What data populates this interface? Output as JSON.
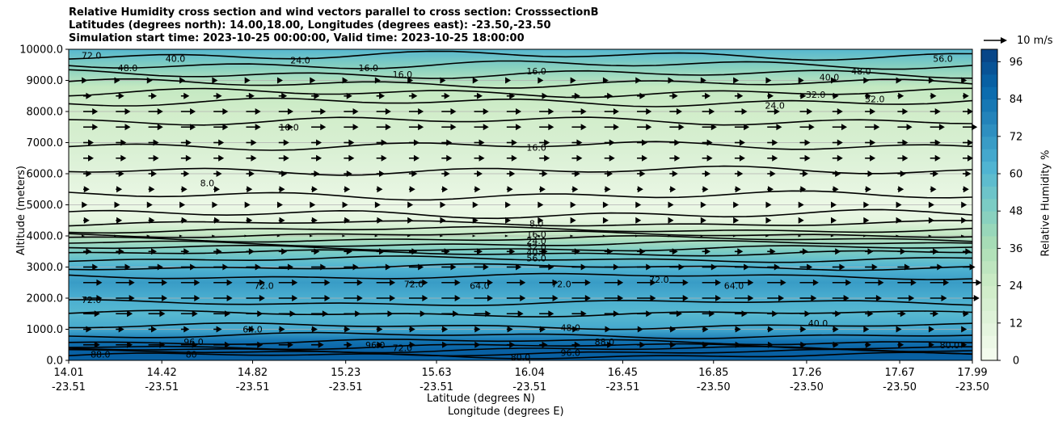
{
  "title_lines": [
    "Relative Humidity cross section and wind vectors parallel to cross section: CrosssectionB",
    "Latitudes (degrees north): 14.00,18.00, Longitudes (degrees east): -23.50,-23.50",
    "Simulation start time: 2023-10-25 00:00:00, Valid time: 2023-10-25 18:00:00"
  ],
  "chart_data": {
    "type": "heatmap",
    "subtype": "filled contour cross-section with line contours and wind vectors",
    "xlabel": "Latitude (degrees N)",
    "xlabel2": "Longitude (degrees E)",
    "ylabel": "Altitude (meters)",
    "ylim": [
      0,
      10000
    ],
    "y_ticks": [
      "0.0",
      "1000.0",
      "2000.0",
      "3000.0",
      "4000.0",
      "5000.0",
      "6000.0",
      "7000.0",
      "8000.0",
      "9000.0",
      "10000.0"
    ],
    "x_ticks": [
      {
        "lat": "14.01",
        "lon": "-23.51"
      },
      {
        "lat": "14.42",
        "lon": "-23.51"
      },
      {
        "lat": "14.82",
        "lon": "-23.51"
      },
      {
        "lat": "15.23",
        "lon": "-23.51"
      },
      {
        "lat": "15.63",
        "lon": "-23.51"
      },
      {
        "lat": "16.04",
        "lon": "-23.51"
      },
      {
        "lat": "16.45",
        "lon": "-23.51"
      },
      {
        "lat": "16.85",
        "lon": "-23.50"
      },
      {
        "lat": "17.26",
        "lon": "-23.50"
      },
      {
        "lat": "17.67",
        "lon": "-23.50"
      },
      {
        "lat": "17.99",
        "lon": "-23.50"
      }
    ],
    "grid": "horizontal",
    "colorbar": {
      "label": "Relative Humidity %",
      "ticks": [
        "0",
        "12",
        "24",
        "36",
        "48",
        "60",
        "72",
        "84",
        "96"
      ],
      "min": 0,
      "max": 100,
      "step": 4,
      "colormap": [
        "#f7fcf0",
        "#e0f3db",
        "#ccebc5",
        "#a8ddb5",
        "#7bccc4",
        "#4eb3d3",
        "#2b8cbe",
        "#0868ac",
        "#084081"
      ]
    },
    "humidity_profile": {
      "altitude": [
        0,
        300,
        600,
        1000,
        1500,
        2000,
        2500,
        3000,
        3500,
        4000,
        4500,
        5000,
        6000,
        7000,
        8000,
        8800,
        9400,
        10000
      ],
      "rh": [
        90,
        90,
        84,
        66,
        60,
        64,
        70,
        62,
        50,
        30,
        10,
        6,
        12,
        18,
        22,
        28,
        46,
        60
      ]
    },
    "contour_labels": [
      {
        "value": "8.0",
        "lat": 16.07,
        "alt": 4400
      },
      {
        "value": "16.0",
        "lat": 16.07,
        "alt": 4050
      },
      {
        "value": "24.0",
        "lat": 16.07,
        "alt": 3850
      },
      {
        "value": "32.0",
        "lat": 16.07,
        "alt": 3650
      },
      {
        "value": "40.0",
        "lat": 16.07,
        "alt": 3480
      },
      {
        "value": "56.0",
        "lat": 16.07,
        "alt": 3280
      },
      {
        "value": "16.0",
        "lat": 16.07,
        "alt": 6850
      },
      {
        "value": "16.0",
        "lat": 16.07,
        "alt": 9300
      },
      {
        "value": "16.0",
        "lat": 15.33,
        "alt": 9400
      },
      {
        "value": "16.0",
        "lat": 15.48,
        "alt": 9200
      },
      {
        "value": "24.0",
        "lat": 15.03,
        "alt": 9650
      },
      {
        "value": "40.0",
        "lat": 14.48,
        "alt": 9700
      },
      {
        "value": "48.0",
        "lat": 14.27,
        "alt": 9400
      },
      {
        "value": "72.0",
        "lat": 14.11,
        "alt": 9800
      },
      {
        "value": "24.0",
        "lat": 17.12,
        "alt": 8200
      },
      {
        "value": "32.0",
        "lat": 17.3,
        "alt": 8550
      },
      {
        "value": "40.0",
        "lat": 17.36,
        "alt": 9100
      },
      {
        "value": "48.0",
        "lat": 17.5,
        "alt": 9300
      },
      {
        "value": "32.0",
        "lat": 17.56,
        "alt": 8400
      },
      {
        "value": "56.0",
        "lat": 17.86,
        "alt": 9700
      },
      {
        "value": "16.0",
        "lat": 14.98,
        "alt": 7500
      },
      {
        "value": "8.0",
        "lat": 14.62,
        "alt": 5700
      },
      {
        "value": "72.0",
        "lat": 14.11,
        "alt": 1950
      },
      {
        "value": "72.0",
        "lat": 14.87,
        "alt": 2400
      },
      {
        "value": "72.0",
        "lat": 15.53,
        "alt": 2450
      },
      {
        "value": "64.0",
        "lat": 15.82,
        "alt": 2400
      },
      {
        "value": "72.0",
        "lat": 16.18,
        "alt": 2450
      },
      {
        "value": "72.0",
        "lat": 16.61,
        "alt": 2600
      },
      {
        "value": "64.0",
        "lat": 16.94,
        "alt": 2400
      },
      {
        "value": "64.0",
        "lat": 14.82,
        "alt": 1000
      },
      {
        "value": "96.0",
        "lat": 14.56,
        "alt": 600
      },
      {
        "value": "80",
        "lat": 14.55,
        "alt": 200
      },
      {
        "value": "88.0",
        "lat": 14.15,
        "alt": 200
      },
      {
        "value": "96.0",
        "lat": 15.36,
        "alt": 500
      },
      {
        "value": "72.0",
        "lat": 15.48,
        "alt": 400
      },
      {
        "value": "48.0",
        "lat": 16.22,
        "alt": 1050
      },
      {
        "value": "96.0",
        "lat": 16.22,
        "alt": 250
      },
      {
        "value": "80.0",
        "lat": 16.0,
        "alt": 100
      },
      {
        "value": "88.0",
        "lat": 16.37,
        "alt": 600
      },
      {
        "value": "40.0",
        "lat": 17.31,
        "alt": 1200
      },
      {
        "value": "80.0",
        "lat": 17.89,
        "alt": 500
      }
    ],
    "quiver": {
      "key_label": "10 m/s",
      "rows": [
        {
          "alt": 500,
          "speeds": [
            8,
            8,
            8,
            8,
            8,
            8,
            7,
            6,
            4,
            3,
            3,
            3,
            3,
            4,
            4,
            4,
            4,
            4,
            3,
            3,
            3,
            3,
            3,
            3,
            3,
            3,
            2,
            2
          ]
        },
        {
          "alt": 1000,
          "speeds": [
            4,
            4,
            4,
            4,
            4,
            4,
            3,
            3,
            3,
            3,
            3,
            3,
            3,
            3,
            3,
            3,
            3,
            3,
            3,
            3,
            3,
            3,
            3,
            3,
            2,
            2,
            2,
            2
          ]
        },
        {
          "alt": 1500,
          "speeds": [
            8,
            8,
            8,
            8,
            8,
            8,
            8,
            8,
            8,
            8,
            8,
            8,
            8,
            8,
            7,
            7,
            7,
            7,
            6,
            6,
            6,
            5,
            5,
            4,
            4,
            4,
            4,
            3
          ]
        },
        {
          "alt": 2000,
          "speeds": [
            9,
            9,
            9,
            9,
            9,
            9,
            9,
            9,
            9,
            9,
            9,
            9,
            9,
            9,
            9,
            9,
            9,
            9,
            9,
            9,
            9,
            8,
            8,
            8,
            8,
            8,
            8,
            8
          ]
        },
        {
          "alt": 2500,
          "speeds": [
            9,
            9,
            9,
            9,
            9,
            9,
            9,
            9,
            9,
            9,
            9,
            9,
            9,
            9,
            9,
            9,
            9,
            9,
            9,
            9,
            9,
            9,
            9,
            9,
            9,
            9,
            9,
            9
          ]
        },
        {
          "alt": 3000,
          "speeds": [
            7,
            7,
            7,
            7,
            7,
            7,
            7,
            7,
            7,
            7,
            7,
            7,
            7,
            7,
            7,
            7,
            7,
            7,
            7,
            7,
            7,
            6,
            6,
            6,
            6,
            6,
            6,
            6
          ]
        },
        {
          "alt": 3500,
          "speeds": [
            4,
            4,
            4,
            4,
            4,
            4,
            4,
            4,
            4,
            4,
            4,
            4,
            4,
            4,
            4,
            4,
            4,
            4,
            4,
            4,
            4,
            4,
            4,
            4,
            4,
            4,
            4,
            4
          ]
        },
        {
          "alt": 4000,
          "speeds": [
            1,
            1,
            1,
            1,
            1,
            1,
            1,
            1,
            1,
            1,
            1,
            1,
            1,
            1,
            1,
            1,
            1,
            1,
            1,
            1,
            1,
            1,
            1,
            1,
            1,
            1,
            1,
            1
          ]
        },
        {
          "alt": 4500,
          "speeds": [
            3,
            3,
            3,
            3,
            3,
            3,
            3,
            3,
            3,
            3,
            2,
            2,
            2,
            2,
            2,
            2,
            2,
            2,
            2,
            2,
            2,
            2,
            2,
            2,
            2,
            2,
            2,
            2
          ]
        },
        {
          "alt": 5000,
          "speeds": [
            2,
            2,
            2,
            2,
            2,
            2,
            2,
            2,
            2,
            2,
            2,
            2,
            2,
            2,
            2,
            2,
            2,
            2,
            2,
            2,
            2,
            2,
            2,
            2,
            2,
            2,
            2,
            2
          ]
        },
        {
          "alt": 5500,
          "speeds": [
            3,
            3,
            3,
            3,
            3,
            3,
            3,
            3,
            3,
            3,
            3,
            3,
            3,
            3,
            3,
            3,
            3,
            3,
            3,
            3,
            3,
            3,
            3,
            3,
            3,
            3,
            3,
            3
          ]
        },
        {
          "alt": 6000,
          "speeds": [
            4,
            4,
            4,
            4,
            4,
            4,
            4,
            4,
            4,
            4,
            4,
            4,
            4,
            4,
            4,
            4,
            4,
            4,
            4,
            4,
            4,
            4,
            4,
            4,
            4,
            4,
            4,
            4
          ]
        },
        {
          "alt": 6500,
          "speeds": [
            5,
            5,
            5,
            5,
            5,
            5,
            5,
            5,
            5,
            5,
            5,
            5,
            5,
            5,
            5,
            5,
            5,
            5,
            5,
            5,
            5,
            5,
            5,
            5,
            5,
            5,
            5,
            5
          ]
        },
        {
          "alt": 7000,
          "speeds": [
            5,
            5,
            5,
            5,
            5,
            5,
            5,
            5,
            5,
            5,
            5,
            5,
            5,
            5,
            5,
            5,
            5,
            5,
            5,
            5,
            5,
            5,
            5,
            5,
            5,
            5,
            5,
            5
          ]
        },
        {
          "alt": 7500,
          "speeds": [
            7,
            7,
            7,
            7,
            7,
            7,
            7,
            7,
            7,
            7,
            7,
            7,
            7,
            7,
            7,
            7,
            7,
            7,
            7,
            7,
            7,
            7,
            7,
            7,
            7,
            7,
            7,
            7
          ]
        },
        {
          "alt": 8000,
          "speeds": [
            7,
            7,
            7,
            7,
            7,
            7,
            7,
            7,
            7,
            7,
            7,
            7,
            7,
            7,
            7,
            7,
            7,
            7,
            6,
            6,
            6,
            6,
            6,
            5,
            5,
            5,
            5,
            5
          ]
        },
        {
          "alt": 8500,
          "speeds": [
            4,
            4,
            4,
            4,
            4,
            4,
            4,
            4,
            4,
            4,
            4,
            4,
            4,
            4,
            4,
            4,
            4,
            4,
            4,
            4,
            4,
            3,
            3,
            3,
            3,
            3,
            3,
            3
          ]
        },
        {
          "alt": 9000,
          "speeds": [
            2,
            2,
            2,
            2,
            2,
            2,
            2,
            2,
            2,
            2,
            2,
            2,
            2,
            2,
            2,
            2,
            2,
            2,
            2,
            2,
            2,
            2,
            2,
            2,
            2,
            2,
            2,
            2
          ]
        }
      ]
    }
  }
}
